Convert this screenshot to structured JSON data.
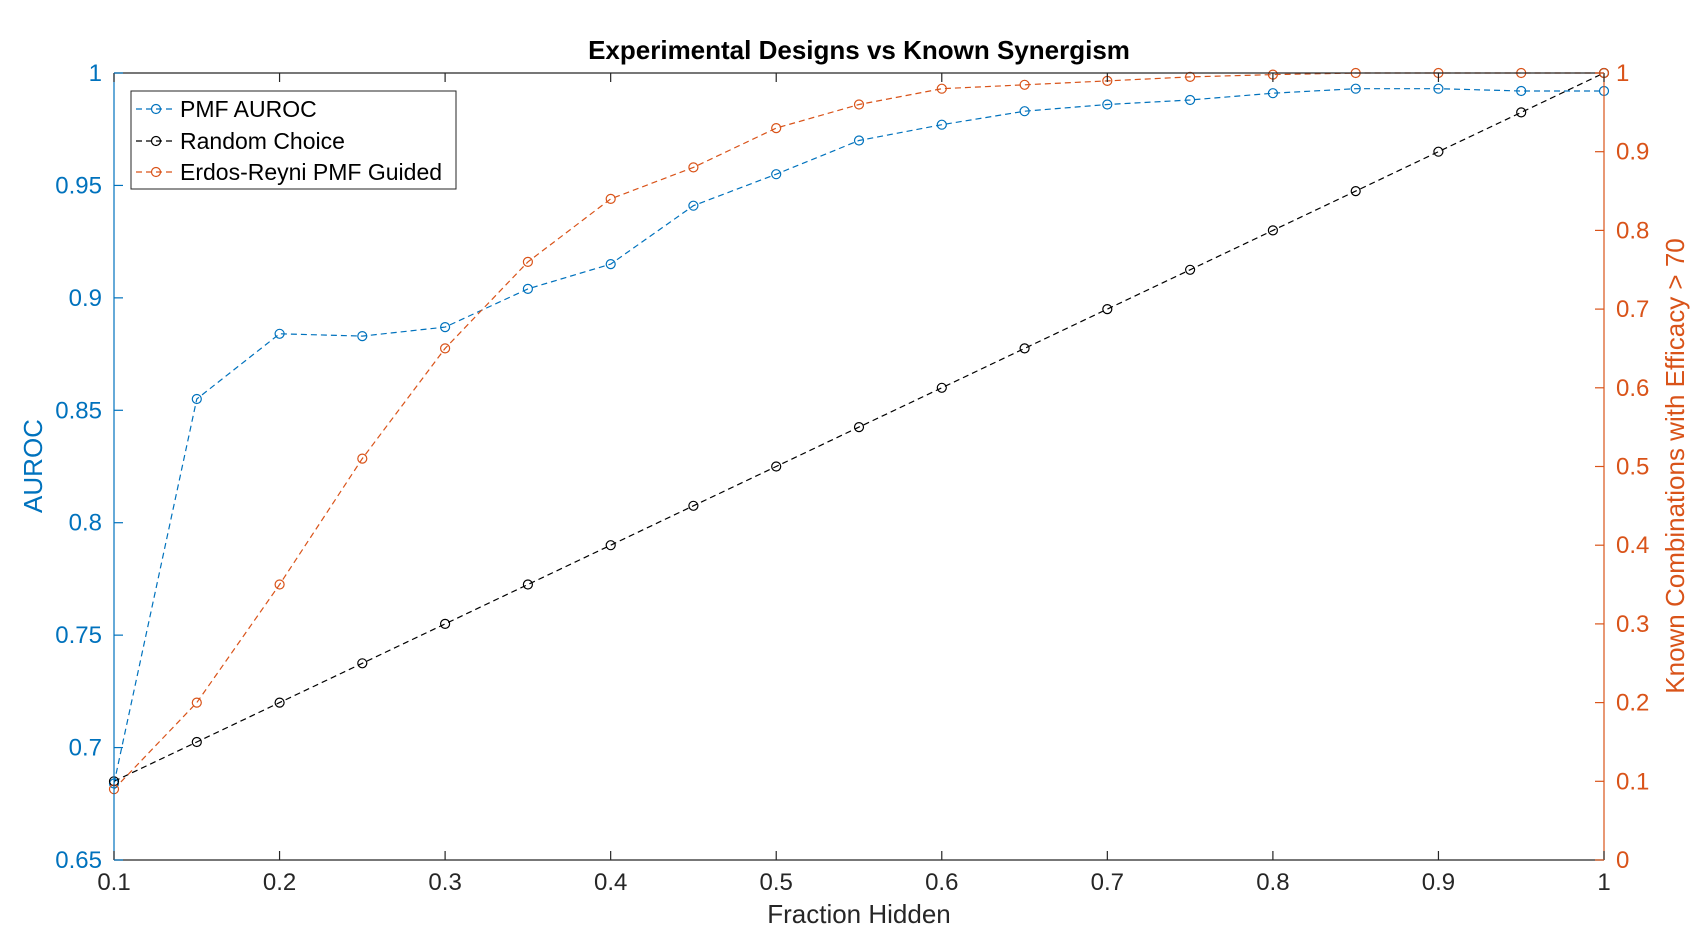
{
  "chart_data": {
    "type": "line",
    "title": "Experimental Designs vs Known Synergism",
    "xlabel": "Fraction Hidden",
    "ylabel_left": "AUROC",
    "ylabel_right": "Known Combinations with Efficacy > 70",
    "xlim": [
      0.1,
      1
    ],
    "ylim_left": [
      0.65,
      1
    ],
    "ylim_right": [
      0,
      1
    ],
    "x_ticks": [
      "0.1",
      "0.2",
      "0.3",
      "0.4",
      "0.5",
      "0.6",
      "0.7",
      "0.8",
      "0.9",
      "1"
    ],
    "y_left_ticks": [
      "0.65",
      "0.7",
      "0.75",
      "0.8",
      "0.85",
      "0.9",
      "0.95",
      "1"
    ],
    "y_right_ticks": [
      "0",
      "0.1",
      "0.2",
      "0.3",
      "0.4",
      "0.5",
      "0.6",
      "0.7",
      "0.8",
      "0.9",
      "1"
    ],
    "grid": false,
    "legend_position": "top-left",
    "x": [
      0.1,
      0.15,
      0.2,
      0.25,
      0.3,
      0.35,
      0.4,
      0.45,
      0.5,
      0.55,
      0.6,
      0.65,
      0.7,
      0.75,
      0.8,
      0.85,
      0.9,
      0.95,
      1.0
    ],
    "series": [
      {
        "name": "PMF AUROC",
        "axis": "left",
        "color": "#0072BD",
        "values": [
          0.684,
          0.855,
          0.884,
          0.883,
          0.887,
          0.904,
          0.915,
          0.941,
          0.955,
          0.97,
          0.977,
          0.983,
          0.986,
          0.988,
          0.991,
          0.993,
          0.993,
          0.992,
          0.992
        ]
      },
      {
        "name": "Random Choice",
        "axis": "right",
        "color": "#000000",
        "values": [
          0.1,
          0.15,
          0.2,
          0.25,
          0.3,
          0.35,
          0.4,
          0.45,
          0.5,
          0.55,
          0.6,
          0.65,
          0.7,
          0.75,
          0.8,
          0.85,
          0.9,
          0.95,
          1.0
        ]
      },
      {
        "name": "Erdos-Reyni PMF Guided",
        "axis": "right",
        "color": "#D95319",
        "values": [
          0.09,
          0.2,
          0.35,
          0.51,
          0.65,
          0.76,
          0.84,
          0.88,
          0.93,
          0.96,
          0.98,
          0.985,
          0.99,
          0.995,
          0.998,
          1.0,
          1.0,
          1.0,
          1.0
        ]
      }
    ]
  }
}
